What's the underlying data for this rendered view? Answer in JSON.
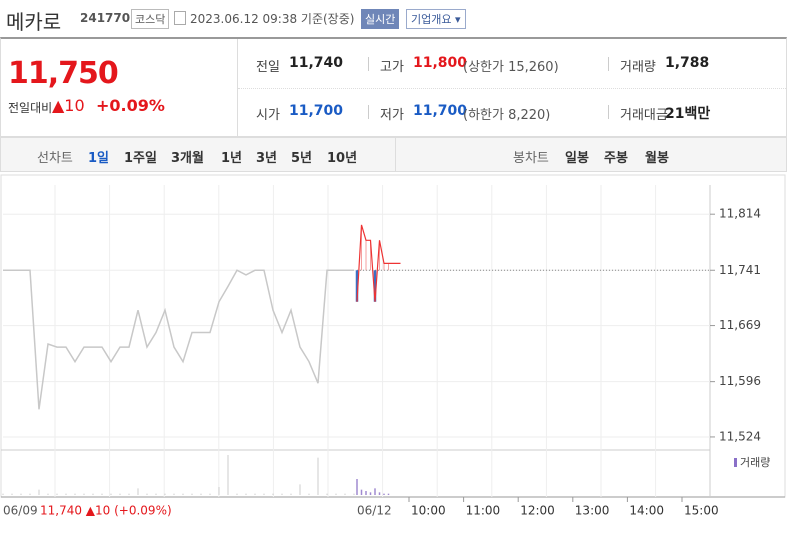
{
  "header": {
    "name": "메카로",
    "code": "241770",
    "market": "코스닥",
    "timestamp": "2023.06.12 09:38 기준(장중)",
    "realtime": "실시간",
    "company": "기업개요"
  },
  "price": {
    "current": "11,750",
    "change_label": "전일대비",
    "change": "▲10",
    "change_pct": "+0.09%"
  },
  "summary": [
    [
      {
        "label": "전일",
        "value": "11,740"
      },
      {
        "label": "고가",
        "value": "11,800",
        "note": "(상한가 15,260)"
      },
      {
        "label": "거래량",
        "value": "1,788"
      }
    ],
    [
      {
        "label": "시가",
        "value": "11,700"
      },
      {
        "label": "저가",
        "value": "11,700",
        "note": "(하한가 8,220)"
      },
      {
        "label": "거래대금",
        "value": "21백만"
      }
    ]
  ],
  "tabs": {
    "line_label": "선차트",
    "line": [
      "1일",
      "1주일",
      "3개월",
      "1년",
      "3년",
      "5년",
      "10년"
    ],
    "candle_label": "봉차트",
    "candle": [
      "일봉",
      "주봉",
      "월봉"
    ]
  },
  "chart": {
    "ylim": [
      11507,
      11852
    ],
    "yticks": [
      {
        "value": 11814,
        "label": "11,814"
      },
      {
        "value": 11741,
        "label": "11,741"
      },
      {
        "value": 11669,
        "label": "11,669"
      },
      {
        "value": 11596,
        "label": "11,596"
      },
      {
        "value": 11524,
        "label": "11,524"
      }
    ],
    "reference": 11741,
    "previous": [
      11741,
      11741,
      11741,
      11741,
      11560,
      11645,
      11641,
      11641,
      11622,
      11641,
      11641,
      11641,
      11622,
      11641,
      11641,
      11689,
      11641,
      11660,
      11689,
      11641,
      11622,
      11660,
      11660,
      11660,
      11700,
      11720,
      11741,
      11735,
      11741,
      11741,
      11689,
      11660,
      11689,
      11641,
      11622,
      11594,
      11741,
      11741,
      11741,
      11741
    ],
    "today": [
      11700,
      11800,
      11780,
      11780,
      11700,
      11780,
      11750,
      11750
    ],
    "volume_label": "거래량",
    "previous_volume": [
      10,
      10,
      10,
      10,
      40,
      10,
      10,
      10,
      10,
      10,
      10,
      10,
      10,
      10,
      10,
      50,
      10,
      10,
      10,
      10,
      10,
      10,
      10,
      10,
      60,
      300,
      10,
      10,
      10,
      10,
      10,
      10,
      10,
      80,
      10,
      280,
      10,
      10,
      10,
      10
    ],
    "today_volume": [
      120,
      40,
      30,
      20,
      50,
      20,
      10,
      10
    ],
    "xticks": [
      "10:00",
      "11:00",
      "12:00",
      "13:00",
      "14:00",
      "15:00"
    ],
    "prev_date": "06/09",
    "prev_summary": "11,740 ▲10 (+0.09%)",
    "today_date": "06/12"
  }
}
